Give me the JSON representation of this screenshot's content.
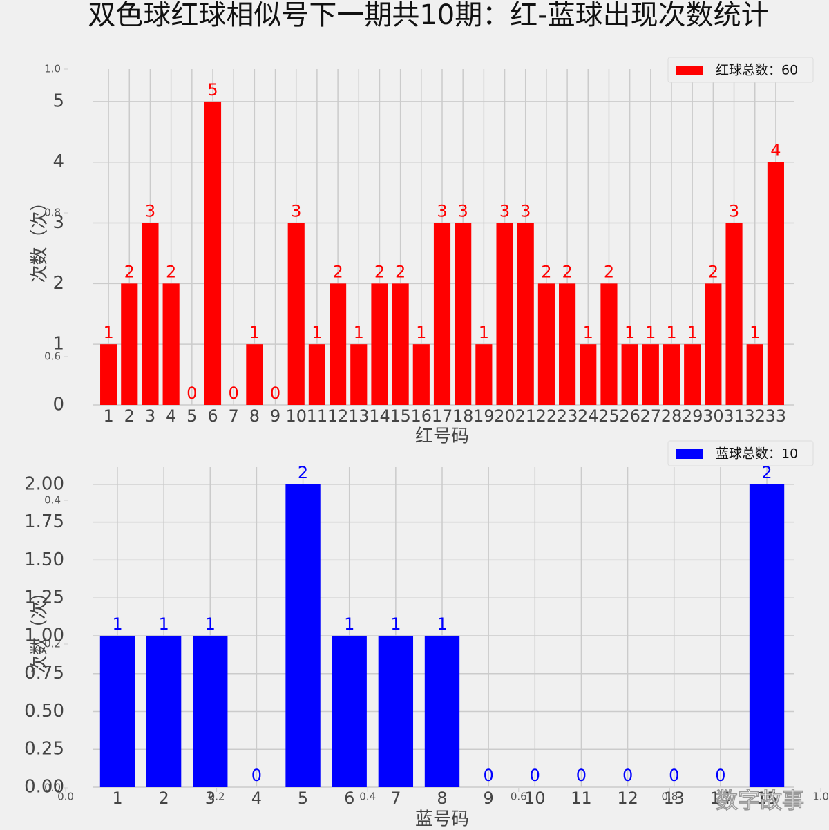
{
  "title": "双色球红球相似号下一期共10期：红-蓝球出现次数统计",
  "watermark": "数字故事",
  "background_axis": {
    "xticks": [
      {
        "value": 0,
        "label": "0.0"
      },
      0.2,
      0.4,
      0.6,
      0.8,
      {
        "value": 1,
        "label": "1.0"
      }
    ],
    "yticks": [
      {
        "value": 0,
        "label": "0.0"
      },
      0.2,
      0.4,
      0.6,
      0.8,
      {
        "value": 1,
        "label": "1.0"
      }
    ],
    "xlim": [
      0,
      1
    ],
    "ylim": [
      0,
      1
    ]
  },
  "chart_data": [
    {
      "type": "bar",
      "xlabel": "红号码",
      "ylabel": "次数（次）",
      "color": "#ff0000",
      "label_color": "#ff0000",
      "categories": [
        "1",
        "2",
        "3",
        "4",
        "5",
        "6",
        "7",
        "8",
        "9",
        "10",
        "11",
        "12",
        "13",
        "14",
        "15",
        "16",
        "17",
        "18",
        "19",
        "20",
        "21",
        "22",
        "23",
        "24",
        "25",
        "26",
        "27",
        "28",
        "29",
        "30",
        "31",
        "32",
        "33"
      ],
      "series": [
        {
          "name": "红球总数：60",
          "color": "#ff0000",
          "values": [
            1,
            2,
            3,
            2,
            0,
            5,
            0,
            1,
            0,
            3,
            1,
            2,
            1,
            2,
            2,
            1,
            3,
            3,
            1,
            3,
            3,
            2,
            2,
            1,
            2,
            1,
            1,
            1,
            1,
            2,
            3,
            1,
            4
          ]
        }
      ],
      "ylim": [
        0,
        5.5
      ],
      "yticks": [
        0,
        1,
        2,
        3,
        4,
        5
      ],
      "grid": true,
      "legend": "upper right"
    },
    {
      "type": "bar",
      "xlabel": "蓝号码",
      "ylabel": "次数（次）",
      "color": "#0000ff",
      "label_color": "#0000ff",
      "categories": [
        "1",
        "2",
        "3",
        "4",
        "5",
        "6",
        "7",
        "8",
        "9",
        "10",
        "11",
        "12",
        "13",
        "14",
        "15"
      ],
      "series": [
        {
          "name": "蓝球总数：10",
          "color": "#0000ff",
          "values": [
            1,
            1,
            1,
            0,
            2,
            1,
            1,
            1,
            0,
            0,
            0,
            0,
            0,
            0,
            2
          ]
        }
      ],
      "ylim": [
        0,
        2.1
      ],
      "yticks": [
        {
          "value": 0,
          "label": "0.00"
        },
        {
          "value": 0.25,
          "label": "0.25"
        },
        {
          "value": 0.5,
          "label": "0.50"
        },
        {
          "value": 0.75,
          "label": "0.75"
        },
        {
          "value": 1,
          "label": "1.00"
        },
        {
          "value": 1.25,
          "label": "1.25"
        },
        {
          "value": 1.5,
          "label": "1.50"
        },
        {
          "value": 1.75,
          "label": "1.75"
        },
        {
          "value": 2,
          "label": "2.00"
        }
      ],
      "grid": true,
      "legend": "upper right"
    }
  ]
}
